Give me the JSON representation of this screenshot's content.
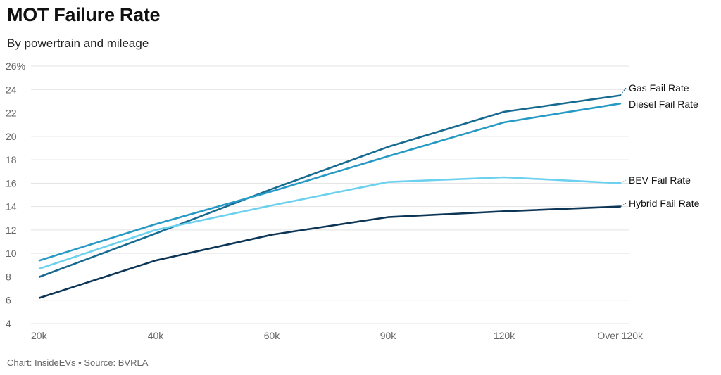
{
  "header": {
    "title": "MOT Failure Rate",
    "subtitle": "By powertrain and mileage"
  },
  "footer": {
    "credit": "Chart: InsideEVs • Source: BVRLA"
  },
  "chart_data": {
    "type": "line",
    "categories": [
      "20k",
      "40k",
      "60k",
      "90k",
      "120k",
      "Over 120k"
    ],
    "series": [
      {
        "name": "Gas Fail Rate",
        "values": [
          8.0,
          11.7,
          15.5,
          19.1,
          22.1,
          23.5
        ],
        "color": "#16698f"
      },
      {
        "name": "Diesel Fail Rate",
        "values": [
          9.4,
          12.5,
          15.3,
          18.3,
          21.2,
          22.8
        ],
        "color": "#2699c4"
      },
      {
        "name": "BEV Fail Rate",
        "values": [
          8.7,
          12.0,
          14.1,
          16.1,
          16.5,
          16.0
        ],
        "color": "#6cd1ef"
      },
      {
        "name": "Hybrid Fail Rate",
        "values": [
          6.2,
          9.4,
          11.6,
          13.1,
          13.6,
          14.0
        ],
        "color": "#0d3556"
      }
    ],
    "ylim": [
      4,
      26
    ],
    "yticks": [
      "26%",
      "24",
      "22",
      "20",
      "18",
      "16",
      "14",
      "12",
      "10",
      "8",
      "6",
      "4"
    ],
    "ytick_values": [
      26,
      24,
      22,
      20,
      18,
      16,
      14,
      12,
      10,
      8,
      6,
      4
    ],
    "grid": true,
    "legend": "line-end labels",
    "xlabel": "",
    "ylabel": ""
  }
}
